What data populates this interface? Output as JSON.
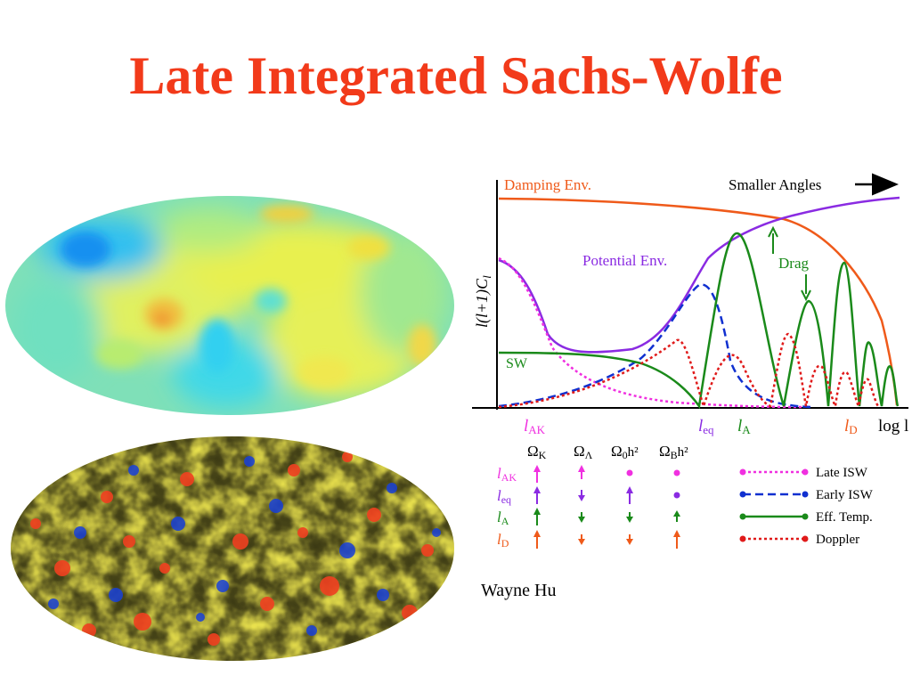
{
  "slide": {
    "title": "Late Integrated Sachs-Wolfe",
    "credit": "Wayne Hu"
  },
  "colors": {
    "title": "#f23a1a",
    "damping": "#ef5a1a",
    "potential": "#8a2be2",
    "late_isw": "#f030e0",
    "early_isw": "#1030d0",
    "eff_temp": "#1a8a1a",
    "doppler": "#e01a1a"
  },
  "graph": {
    "y_label": "l(l+1)C",
    "y_label_sub": "l",
    "x_label": "log l",
    "damping_label": "Damping Env.",
    "smaller_angles_label": "Smaller Angles",
    "potential_label": "Potential Env.",
    "sw_label": "SW",
    "drag_label": "Drag",
    "ticks": [
      {
        "main": "l",
        "sub": "AK"
      },
      {
        "main": "l",
        "sub": "eq"
      },
      {
        "main": "l",
        "sub": "A"
      },
      {
        "main": "l",
        "sub": "D"
      }
    ]
  },
  "table": {
    "headers": [
      {
        "sym": "Ω",
        "sub": "K",
        "sup": ""
      },
      {
        "sym": "Ω",
        "sub": "Λ",
        "sup": ""
      },
      {
        "sym": "Ω",
        "sub": "0",
        "sup": "h²"
      },
      {
        "sym": "Ω",
        "sub": "B",
        "sup": "h²"
      }
    ],
    "rows": [
      {
        "main": "l",
        "sub": "AK",
        "cells": [
          "up-long",
          "up-long",
          "dot",
          "dot"
        ]
      },
      {
        "main": "l",
        "sub": "eq",
        "cells": [
          "up-long",
          "down-short",
          "up-long",
          "dot"
        ]
      },
      {
        "main": "l",
        "sub": "A",
        "cells": [
          "up-long",
          "down-short",
          "down-short",
          "up-short"
        ]
      },
      {
        "main": "l",
        "sub": "D",
        "cells": [
          "up-long",
          "down-short",
          "down-short",
          "up-long"
        ]
      }
    ]
  },
  "legend": [
    {
      "label": "Late ISW",
      "style": "dotted"
    },
    {
      "label": "Early ISW",
      "style": "dashed"
    },
    {
      "label": "Eff. Temp.",
      "style": "solid"
    },
    {
      "label": "Doppler",
      "style": "dotted"
    }
  ]
}
